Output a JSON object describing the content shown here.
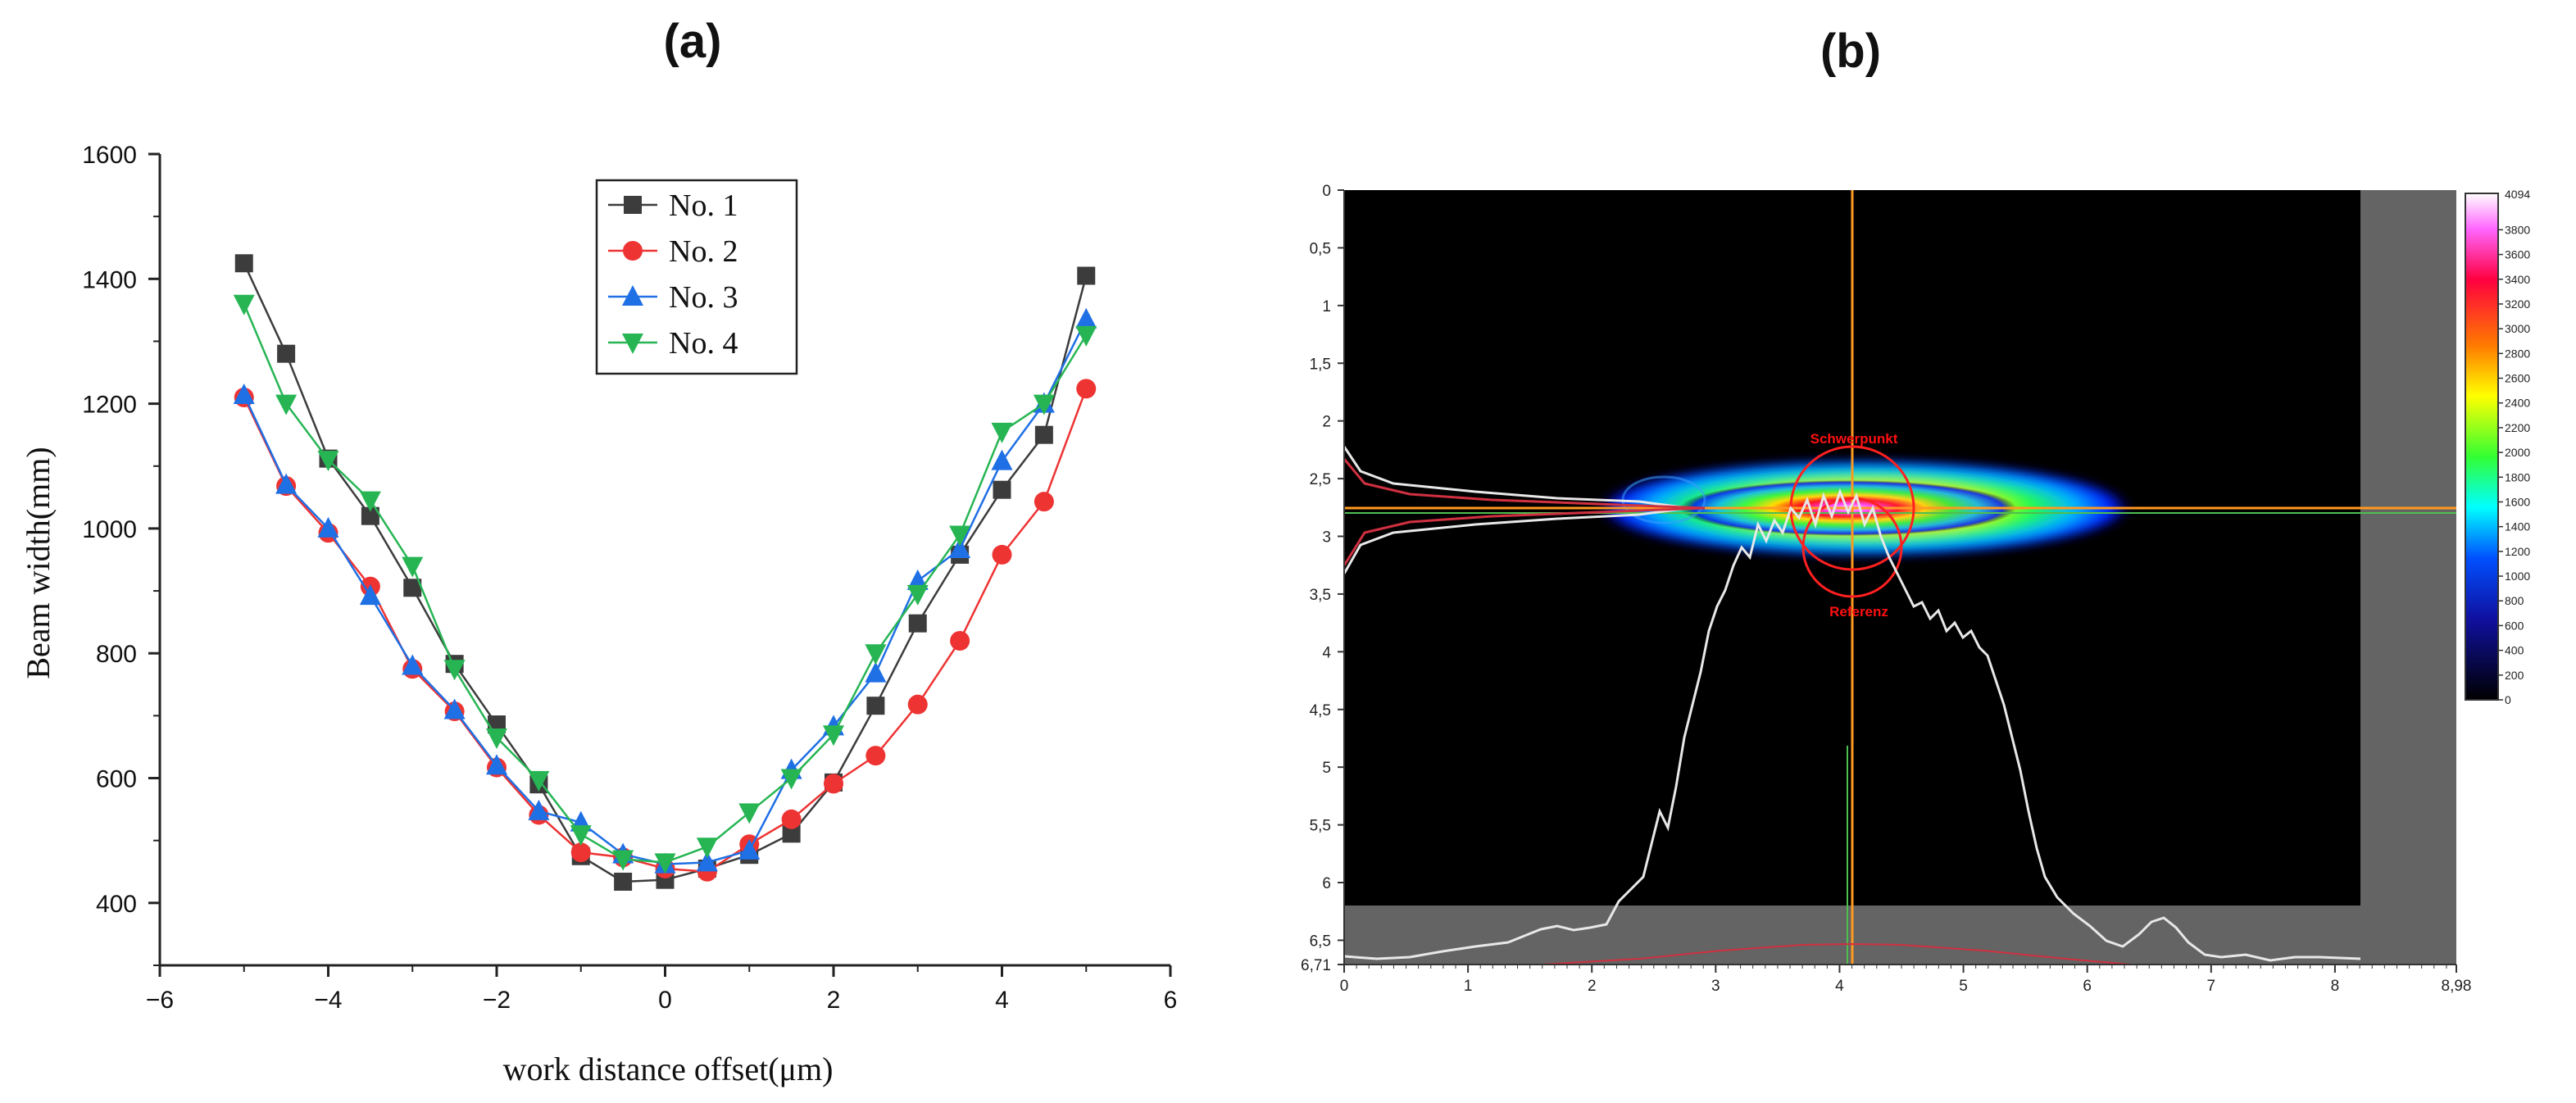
{
  "chart_data": [
    {
      "type": "line",
      "panel_label": "(a)",
      "title": "",
      "xlabel": "work distance offset(μm)",
      "ylabel": "Beam width(mm)",
      "xlim": [
        -6,
        6
      ],
      "ylim": [
        300,
        1600
      ],
      "xticks": [
        -6,
        -4,
        -2,
        0,
        2,
        4,
        6
      ],
      "yticks": [
        400,
        600,
        800,
        1000,
        1200,
        1400,
        1600
      ],
      "grid": false,
      "legend_position": "top-center",
      "x": [
        -5,
        -4.5,
        -4,
        -3.5,
        -3,
        -2.5,
        -2,
        -1.5,
        -1,
        -0.5,
        0,
        0.5,
        1,
        1.5,
        2,
        2.5,
        3,
        3.5,
        4,
        4.5,
        5
      ],
      "series": [
        {
          "name": "No. 1",
          "color": "#3c3c3c",
          "marker": "square",
          "values": [
            1425,
            1280,
            1112,
            1020,
            905,
            783,
            686,
            590,
            475,
            434,
            437,
            455,
            477,
            511,
            593,
            716,
            848,
            958,
            1062,
            1150,
            1405
          ]
        },
        {
          "name": "No. 2",
          "color": "#ee3333",
          "marker": "circle",
          "values": [
            1210,
            1068,
            993,
            907,
            775,
            707,
            617,
            541,
            481,
            473,
            455,
            450,
            494,
            534,
            591,
            636,
            718,
            820,
            958,
            1043,
            1224
          ]
        },
        {
          "name": "No. 3",
          "color": "#1f6fe5",
          "marker": "triangle-up",
          "values": [
            1214,
            1070,
            1000,
            892,
            780,
            709,
            620,
            547,
            529,
            478,
            462,
            465,
            484,
            613,
            683,
            768,
            916,
            967,
            1108,
            1200,
            1335
          ]
        },
        {
          "name": "No. 4",
          "color": "#27b554",
          "marker": "triangle-down",
          "values": [
            1360,
            1200,
            1110,
            1045,
            940,
            775,
            665,
            597,
            510,
            470,
            465,
            490,
            545,
            600,
            670,
            800,
            895,
            990,
            1155,
            1200,
            1310
          ]
        }
      ]
    },
    {
      "type": "heatmap",
      "panel_label": "(b)",
      "title": "",
      "xlim": [
        0,
        8.98
      ],
      "ylim": [
        6.71,
        0
      ],
      "xtick_labels": [
        "0",
        "1",
        "2",
        "3",
        "4",
        "5",
        "6",
        "7",
        "8",
        "8,98"
      ],
      "ytick_labels": [
        "0",
        "0,5",
        "1",
        "1,5",
        "2",
        "2,5",
        "3",
        "3,5",
        "4",
        "4,5",
        "5",
        "5,5",
        "6",
        "6,5",
        "6,71"
      ],
      "annotations": [
        "Schwerpunkt",
        "Referenz"
      ],
      "crosshair": {
        "x": 4.1,
        "y": 2.75
      },
      "colorbar": {
        "max_label": "4094",
        "tick_labels": [
          "3800",
          "3600",
          "3400",
          "3200",
          "3000",
          "2800",
          "2600",
          "2400",
          "2200",
          "2000",
          "1800",
          "1600",
          "1400",
          "1200",
          "1000",
          "800",
          "600",
          "400",
          "200",
          "0"
        ]
      }
    }
  ]
}
